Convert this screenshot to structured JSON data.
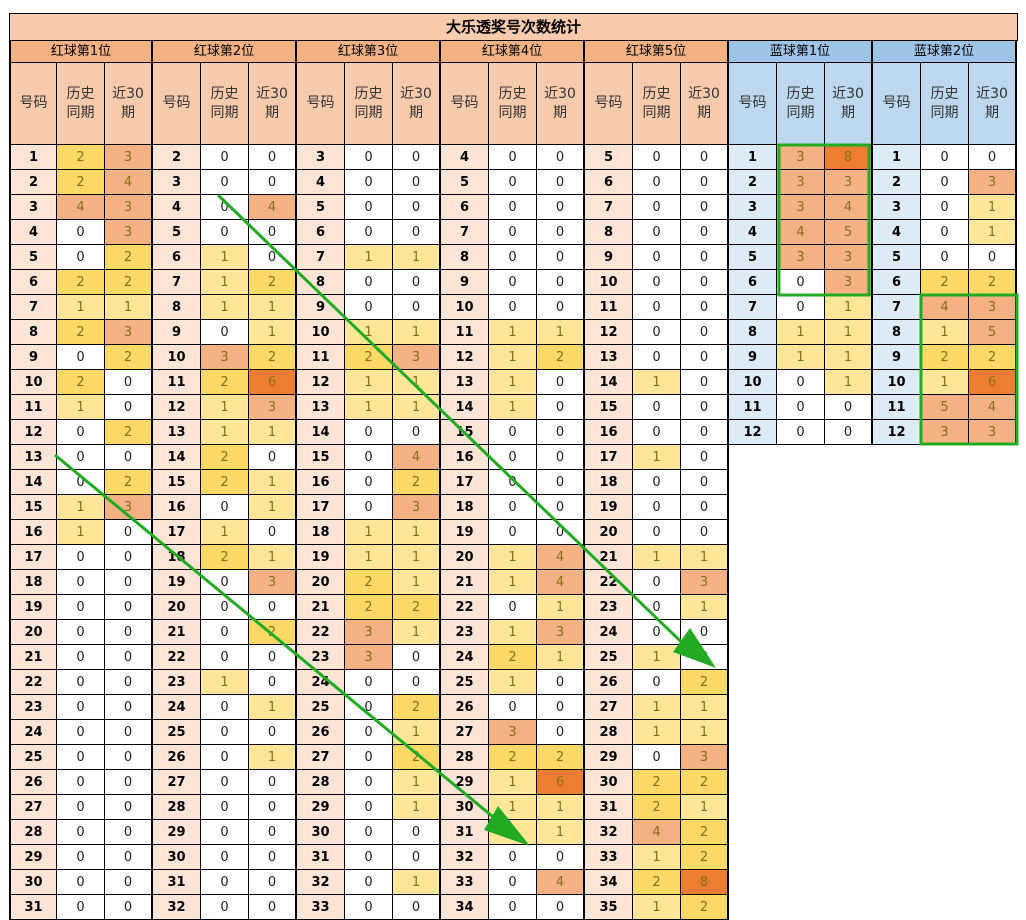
{
  "title": "大乐透奖号次数统计",
  "groups": [
    {
      "label": "红球第1位",
      "type": "red"
    },
    {
      "label": "红球第2位",
      "type": "red"
    },
    {
      "label": "红球第3位",
      "type": "red"
    },
    {
      "label": "红球第4位",
      "type": "red"
    },
    {
      "label": "红球第5位",
      "type": "red"
    },
    {
      "label": "蓝球第1位",
      "type": "blue"
    },
    {
      "label": "蓝球第2位",
      "type": "blue"
    }
  ],
  "subheaders": [
    "号码",
    "历史\n同期",
    "近30\n期"
  ],
  "columns": [
    {
      "start": 1,
      "hist": [
        2,
        2,
        4,
        0,
        0,
        2,
        1,
        2,
        0,
        2,
        1,
        0,
        0,
        0,
        1,
        1,
        0,
        0,
        0,
        0,
        0,
        0,
        0,
        0,
        0,
        0,
        0,
        0,
        0,
        0,
        0
      ],
      "rec": [
        3,
        4,
        3,
        3,
        2,
        2,
        1,
        3,
        2,
        0,
        0,
        2,
        0,
        2,
        3,
        0,
        0,
        0,
        0,
        0,
        0,
        0,
        0,
        0,
        0,
        0,
        0,
        0,
        0,
        0,
        0
      ]
    },
    {
      "start": 2,
      "hist": [
        0,
        0,
        0,
        0,
        1,
        1,
        1,
        0,
        3,
        2,
        1,
        1,
        2,
        2,
        0,
        1,
        2,
        0,
        0,
        0,
        0,
        1,
        0,
        0,
        0,
        0,
        0,
        0,
        0,
        0,
        0
      ],
      "rec": [
        0,
        0,
        4,
        0,
        0,
        2,
        1,
        1,
        2,
        6,
        3,
        1,
        0,
        1,
        1,
        0,
        1,
        3,
        0,
        2,
        0,
        0,
        1,
        0,
        1,
        0,
        0,
        0,
        0,
        0,
        0
      ]
    },
    {
      "start": 3,
      "hist": [
        0,
        0,
        0,
        0,
        1,
        0,
        0,
        1,
        2,
        1,
        1,
        0,
        0,
        0,
        0,
        1,
        1,
        2,
        2,
        3,
        3,
        0,
        0,
        0,
        0,
        0,
        0,
        0,
        0,
        0,
        0
      ],
      "rec": [
        0,
        0,
        0,
        0,
        1,
        0,
        0,
        1,
        3,
        1,
        1,
        0,
        4,
        2,
        3,
        1,
        1,
        1,
        2,
        1,
        0,
        0,
        2,
        1,
        2,
        1,
        1,
        0,
        0,
        1,
        0
      ]
    },
    {
      "start": 4,
      "hist": [
        0,
        0,
        0,
        0,
        0,
        0,
        0,
        1,
        1,
        1,
        1,
        0,
        0,
        0,
        0,
        0,
        1,
        1,
        0,
        1,
        2,
        1,
        0,
        3,
        2,
        1,
        1,
        1,
        0,
        0,
        0
      ],
      "rec": [
        0,
        0,
        0,
        0,
        0,
        0,
        0,
        1,
        2,
        0,
        0,
        0,
        0,
        0,
        0,
        0,
        4,
        4,
        1,
        3,
        1,
        0,
        0,
        0,
        2,
        6,
        1,
        1,
        0,
        4,
        0
      ]
    },
    {
      "start": 5,
      "hist": [
        0,
        0,
        0,
        0,
        0,
        0,
        0,
        0,
        0,
        1,
        0,
        0,
        1,
        0,
        0,
        0,
        1,
        0,
        0,
        0,
        1,
        0,
        1,
        1,
        0,
        2,
        2,
        4,
        1,
        2,
        1
      ],
      "rec": [
        0,
        0,
        0,
        0,
        0,
        0,
        0,
        0,
        0,
        0,
        0,
        0,
        0,
        0,
        0,
        0,
        1,
        3,
        1,
        0,
        0,
        2,
        1,
        1,
        3,
        2,
        1,
        2,
        2,
        8,
        2
      ]
    },
    {
      "start": 1,
      "hist": [
        3,
        3,
        3,
        4,
        3,
        0,
        0,
        1,
        1,
        0,
        0,
        0
      ],
      "rec": [
        8,
        3,
        4,
        5,
        3,
        3,
        1,
        1,
        1,
        1,
        0,
        0
      ]
    },
    {
      "start": 1,
      "hist": [
        0,
        0,
        0,
        0,
        0,
        2,
        4,
        1,
        2,
        1,
        5,
        3
      ],
      "rec": [
        0,
        3,
        1,
        1,
        0,
        2,
        3,
        5,
        2,
        6,
        4,
        3
      ]
    }
  ],
  "heat_colors": {
    "0": "#ffffff",
    "1": "#ffe699",
    "2": "#ffd966",
    "3": "#f4b183",
    "4": "#f4b183",
    "5": "#f4b183",
    "6": "#ed7d31",
    "8": "#ed7d31"
  },
  "accent_green": "#22aa22",
  "overlay_marks": [
    "green-box",
    "green-arrow"
  ]
}
